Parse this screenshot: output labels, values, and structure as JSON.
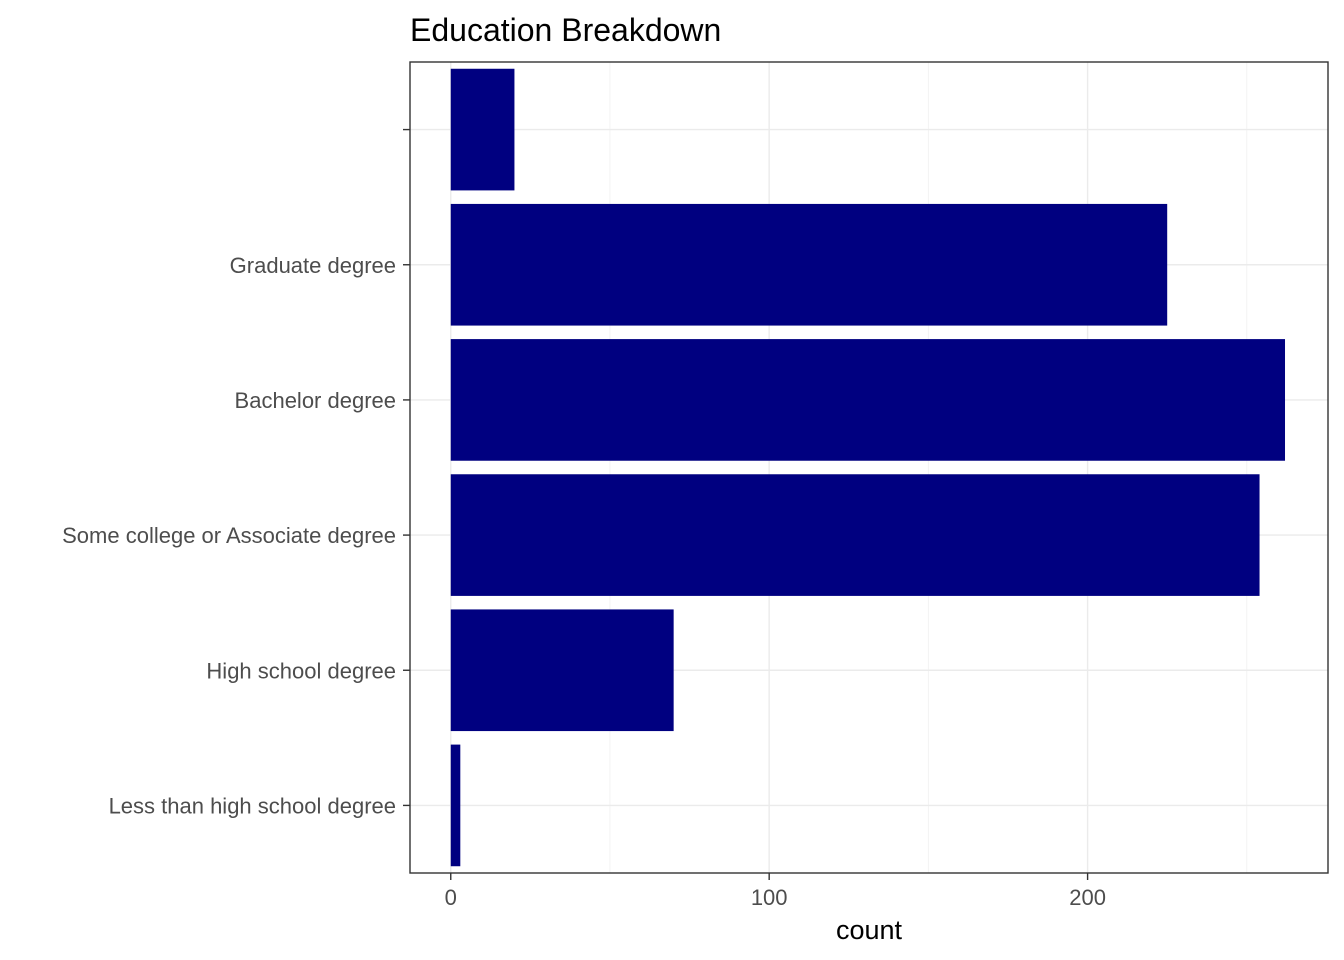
{
  "chart_data": {
    "type": "bar",
    "orientation": "horizontal",
    "title": "Education Breakdown",
    "xlabel": "count",
    "ylabel": "",
    "categories": [
      "Less than high school degree",
      "High school degree",
      "Some college or Associate degree",
      "Bachelor degree",
      "Graduate degree",
      ""
    ],
    "values": [
      3,
      70,
      254,
      262,
      225,
      20
    ],
    "xlim": [
      -12.8,
      275.5
    ],
    "x_ticks": [
      0,
      100,
      200
    ],
    "x_tick_labels": [
      "0",
      "100",
      "200"
    ],
    "grid": true,
    "bar_color": "#000080"
  }
}
